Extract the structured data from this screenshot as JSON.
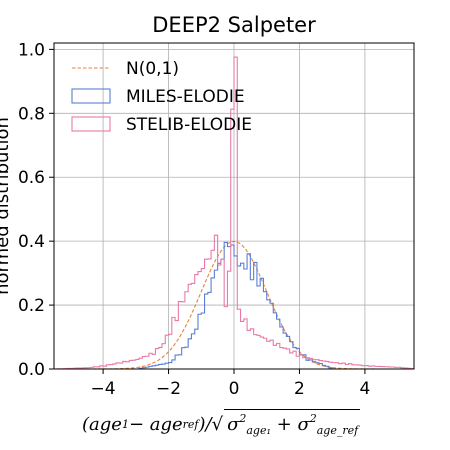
{
  "chart_data": {
    "type": "histogram",
    "title": "DEEP2 Salpeter",
    "ylabel": "normed distribution",
    "xlabel_parts": {
      "left": "(age",
      "sub1": "1",
      "mid": " − age",
      "sub2": "ref",
      "close": ")/",
      "sigma1": "σ",
      "sigma1_sup": "2",
      "sigma1_sub": "age₁",
      "plus": " + ",
      "sigma2": "σ",
      "sigma2_sup": "2",
      "sigma2_sub": "age_ref"
    },
    "xlim": [
      -5.5,
      5.5
    ],
    "ylim": [
      0,
      1.02
    ],
    "xticks": [
      -4,
      -2,
      0,
      2,
      4
    ],
    "xtick_labels": [
      "−4",
      "−2",
      "0",
      "2",
      "4"
    ],
    "yticks": [
      0.0,
      0.2,
      0.4,
      0.6,
      0.8,
      1.0
    ],
    "ytick_labels": [
      "0.0",
      "0.2",
      "0.4",
      "0.6",
      "0.8",
      "1.0"
    ],
    "grid": true,
    "legend_position": "top-left",
    "bin_width": 0.1,
    "series": [
      {
        "name": "N(0,1)",
        "kind": "line",
        "style": "dashed",
        "color": "#e8823a",
        "function": "gaussian",
        "mu": 0,
        "sigma": 1,
        "x_range": [
          -5.5,
          5.5
        ]
      },
      {
        "name": "MILES-ELODIE",
        "kind": "step",
        "color": "#5b7fd6",
        "points": [
          [
            -3.0,
            0.0
          ],
          [
            -2.5,
            0.01
          ],
          [
            -2.0,
            0.02
          ],
          [
            -1.8,
            0.04
          ],
          [
            -1.6,
            0.06
          ],
          [
            -1.4,
            0.09
          ],
          [
            -1.2,
            0.13
          ],
          [
            -1.0,
            0.19
          ],
          [
            -0.8,
            0.25
          ],
          [
            -0.6,
            0.31
          ],
          [
            -0.4,
            0.35
          ],
          [
            -0.2,
            0.41
          ],
          [
            -0.1,
            0.36
          ],
          [
            0.0,
            0.38
          ],
          [
            0.1,
            0.31
          ],
          [
            0.2,
            0.33
          ],
          [
            0.4,
            0.33
          ],
          [
            0.6,
            0.3
          ],
          [
            0.8,
            0.27
          ],
          [
            1.0,
            0.22
          ],
          [
            1.2,
            0.18
          ],
          [
            1.4,
            0.13
          ],
          [
            1.6,
            0.1
          ],
          [
            1.8,
            0.07
          ],
          [
            2.0,
            0.05
          ],
          [
            2.2,
            0.03
          ],
          [
            2.5,
            0.02
          ],
          [
            3.0,
            0.0
          ]
        ]
      },
      {
        "name": "STELIB-ELODIE",
        "kind": "step",
        "color": "#e97aa8",
        "points": [
          [
            -5.5,
            0.0
          ],
          [
            -4.5,
            0.004
          ],
          [
            -4.0,
            0.01
          ],
          [
            -3.5,
            0.02
          ],
          [
            -3.0,
            0.03
          ],
          [
            -2.5,
            0.05
          ],
          [
            -2.2,
            0.08
          ],
          [
            -2.0,
            0.12
          ],
          [
            -1.8,
            0.17
          ],
          [
            -1.6,
            0.22
          ],
          [
            -1.4,
            0.26
          ],
          [
            -1.2,
            0.29
          ],
          [
            -1.0,
            0.32
          ],
          [
            -0.8,
            0.35
          ],
          [
            -0.6,
            0.4
          ],
          [
            -0.4,
            0.31
          ],
          [
            -0.3,
            0.22
          ],
          [
            -0.2,
            0.28
          ],
          [
            -0.1,
            0.86
          ],
          [
            0.0,
            0.97
          ],
          [
            0.1,
            0.18
          ],
          [
            0.2,
            0.16
          ],
          [
            0.4,
            0.13
          ],
          [
            0.6,
            0.11
          ],
          [
            0.8,
            0.1
          ],
          [
            1.0,
            0.09
          ],
          [
            1.2,
            0.08
          ],
          [
            1.4,
            0.07
          ],
          [
            1.6,
            0.06
          ],
          [
            1.8,
            0.05
          ],
          [
            2.0,
            0.04
          ],
          [
            2.4,
            0.03
          ],
          [
            3.0,
            0.02
          ],
          [
            4.0,
            0.01
          ],
          [
            5.0,
            0.005
          ],
          [
            5.5,
            0.0
          ]
        ]
      }
    ]
  }
}
